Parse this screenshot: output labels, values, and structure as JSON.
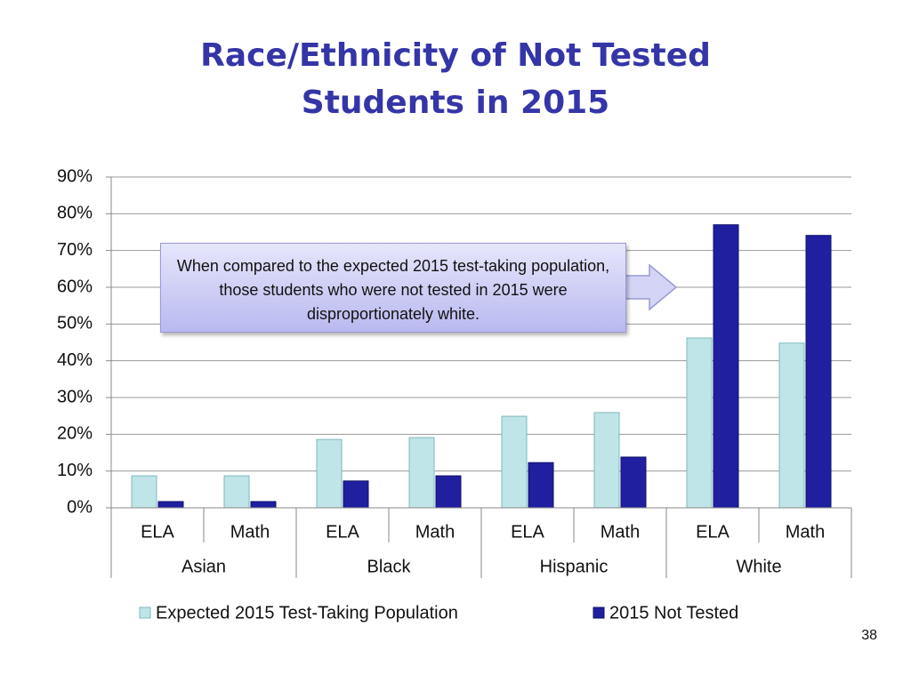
{
  "chart_data": {
    "type": "grouped_bar",
    "title": "Race/Ethnicity of Not Tested Students in 2015",
    "categories": [
      "ELA",
      "Math",
      "ELA",
      "Math",
      "ELA",
      "Math",
      "ELA",
      "Math"
    ],
    "groups": [
      "Asian",
      "Black",
      "Hispanic",
      "White"
    ],
    "series": [
      {
        "name": "Expected 2015 Test-Taking Population",
        "color": "#bfe5e8",
        "values": [
          8.7,
          8.7,
          18.6,
          19.1,
          24.9,
          25.9,
          46.2,
          44.8
        ]
      },
      {
        "name": "2015 Not Tested",
        "color": "#1f1fa0",
        "values": [
          1.7,
          1.7,
          7.3,
          8.7,
          12.3,
          13.8,
          77.0,
          74.1
        ]
      }
    ],
    "ylim": [
      0,
      90
    ],
    "yticks": [
      {
        "value": 0,
        "label": "0%"
      },
      {
        "value": 10,
        "label": "10%"
      },
      {
        "value": 20,
        "label": "20%"
      },
      {
        "value": 30,
        "label": "30%"
      },
      {
        "value": 40,
        "label": "40%"
      },
      {
        "value": 50,
        "label": "50%"
      },
      {
        "value": 60,
        "label": "60%"
      },
      {
        "value": 70,
        "label": "70%"
      },
      {
        "value": 80,
        "label": "80%"
      },
      {
        "value": 90,
        "label": "90%"
      }
    ],
    "grid": true,
    "annotation": "When compared to the expected 2015 test-taking population, those students who were not tested in 2015 were disproportionately white.",
    "page_number": "38"
  }
}
